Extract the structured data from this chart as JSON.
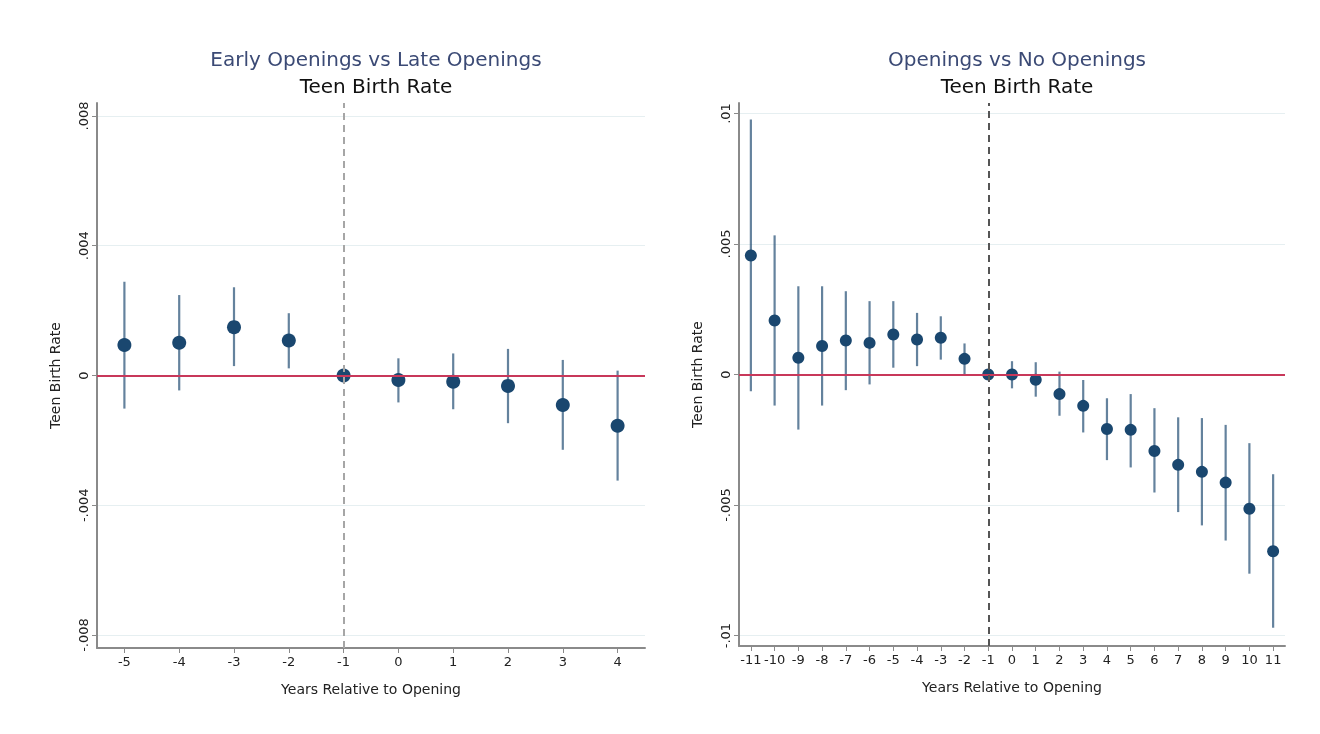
{
  "chart_data": [
    {
      "type": "scatter",
      "title": "Early Openings vs Late Openings",
      "subtitle": "Teen Birth Rate",
      "xlabel": "Years Relative to Opening",
      "ylabel": "Teen Birth Rate",
      "color": "#1a476f",
      "marker": "circle",
      "x": [
        -5,
        -4,
        -3,
        -2,
        -1,
        0,
        1,
        2,
        3,
        4
      ],
      "values": [
        0.00094,
        0.00101,
        0.00149,
        0.00108,
        0,
        -0.00014,
        -0.00019,
        -0.00032,
        -0.00091,
        -0.00155
      ],
      "errors": [
        [
          -0.00102,
          0.00289
        ],
        [
          -0.00046,
          0.00248
        ],
        [
          0.00029,
          0.00272
        ],
        [
          0.00022,
          0.00192
        ],
        null,
        [
          -0.00083,
          0.00053
        ],
        [
          -0.00104,
          0.00068
        ],
        [
          -0.00147,
          0.00082
        ],
        [
          -0.00229,
          0.00048
        ],
        [
          -0.00324,
          0.00015
        ]
      ],
      "xlim": [
        -5.5,
        4.5
      ],
      "xticks": [
        -5,
        -4,
        -3,
        -2,
        -1,
        0,
        1,
        2,
        3,
        4
      ],
      "ylim": [
        -0.0084,
        0.0084
      ],
      "yticks": [
        {
          "value": -0.008,
          "label": "-.008"
        },
        {
          "value": -0.004,
          "label": "-.004"
        },
        0,
        {
          "value": 0.004,
          "label": ".004"
        },
        {
          "value": 0.008,
          "label": ".008"
        }
      ],
      "grid": "y",
      "ref_lines": [
        {
          "axis": "y",
          "value": 0,
          "color": "#c8385a",
          "line_style": "solid"
        },
        {
          "axis": "x",
          "value": -1,
          "color": "#a6a6a6",
          "line_style": "dashed"
        }
      ]
    },
    {
      "type": "scatter",
      "title": "Openings vs No Openings",
      "subtitle": "Teen Birth Rate",
      "xlabel": "Years Relative to Opening",
      "ylabel": "Teen Birth Rate",
      "color": "#1a476f",
      "marker": "circle",
      "x": [
        -11,
        -10,
        -9,
        -8,
        -7,
        -6,
        -5,
        -4,
        -3,
        -2,
        -1,
        0,
        1,
        2,
        3,
        4,
        5,
        6,
        7,
        8,
        9,
        10,
        11
      ],
      "values": [
        0.00456,
        0.00207,
        0.00064,
        0.00109,
        0.0013,
        0.00121,
        0.00153,
        0.00134,
        0.00141,
        0.0006,
        0,
        0,
        -0.0002,
        -0.00075,
        -0.0012,
        -0.00209,
        -0.00212,
        -0.00293,
        -0.00346,
        -0.00373,
        -0.00414,
        -0.00514,
        -0.00677
      ],
      "errors": [
        [
          -0.00064,
          0.00977
        ],
        [
          -0.00119,
          0.00533
        ],
        [
          -0.00211,
          0.00338
        ],
        [
          -0.00119,
          0.00338
        ],
        [
          -0.0006,
          0.00319
        ],
        [
          -0.00038,
          0.00281
        ],
        [
          0.00026,
          0.00281
        ],
        [
          0.00032,
          0.00236
        ],
        [
          0.00057,
          0.00223
        ],
        [
          0,
          0.00119
        ],
        null,
        [
          -0.00053,
          0.00051
        ],
        [
          -0.00085,
          0.00047
        ],
        [
          -0.00158,
          0.00011
        ],
        [
          -0.00222,
          -0.00021
        ],
        [
          -0.00328,
          -0.00091
        ],
        [
          -0.00356,
          -0.00075
        ],
        [
          -0.00452,
          -0.00129
        ],
        [
          -0.00527,
          -0.00164
        ],
        [
          -0.00578,
          -0.00167
        ],
        [
          -0.00636,
          -0.00193
        ],
        [
          -0.00763,
          -0.00263
        ],
        [
          -0.0097,
          -0.00382
        ]
      ],
      "xlim": [
        -11.5,
        11.5
      ],
      "xticks": [
        -11,
        -10,
        -9,
        -8,
        -7,
        -6,
        -5,
        -4,
        -3,
        -2,
        -1,
        0,
        1,
        2,
        3,
        4,
        5,
        6,
        7,
        8,
        9,
        10,
        11
      ],
      "ylim": [
        -0.0104,
        0.0104
      ],
      "yticks": [
        {
          "value": -0.01,
          "label": "-.01"
        },
        {
          "value": -0.005,
          "label": "-.005"
        },
        0,
        {
          "value": 0.005,
          "label": ".005"
        },
        {
          "value": 0.01,
          "label": ".01"
        }
      ],
      "grid": "y",
      "ref_lines": [
        {
          "axis": "y",
          "value": 0,
          "color": "#c8385a",
          "line_style": "solid"
        },
        {
          "axis": "x",
          "value": -1,
          "color": "#555555",
          "line_style": "dashed"
        }
      ]
    }
  ]
}
